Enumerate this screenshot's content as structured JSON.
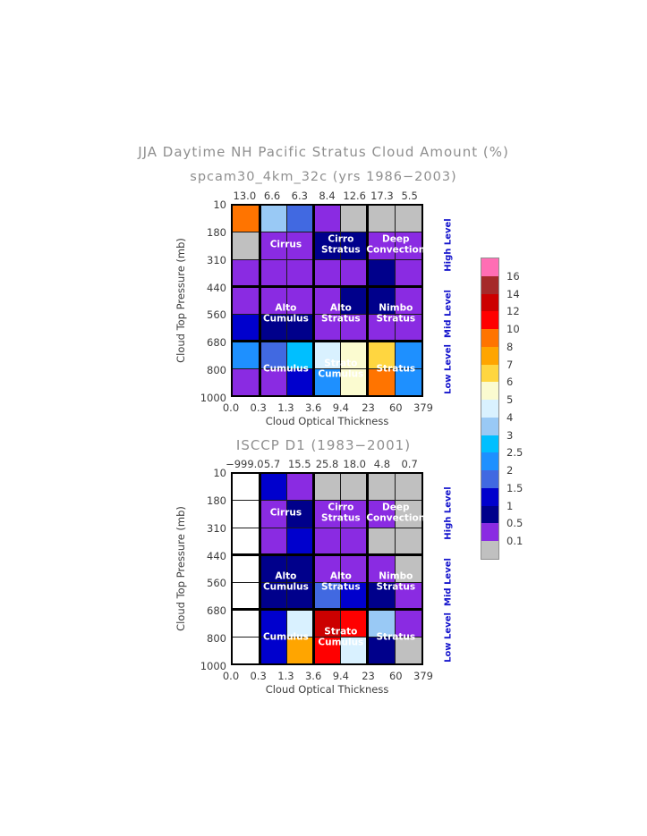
{
  "theme": {
    "background": "#FFFFFF",
    "title_color": "#8f8f8f",
    "tick_color": "#3d3d3d",
    "cell_label_color": "#FFFFFF",
    "level_label_color": "#1414CC",
    "grid_line_color": "#000000"
  },
  "chart_data": {
    "type": "heatmap",
    "title": "JJA Daytime NH Pacific Stratus Cloud Amount (%)",
    "xlabel": "Cloud Optical Thickness",
    "ylabel": "Cloud Top Pressure (mb)",
    "x_bin_edges": [
      0.0,
      0.3,
      1.3,
      3.6,
      9.4,
      23,
      60,
      379
    ],
    "y_bin_edges_mb": [
      10,
      180,
      310,
      440,
      560,
      680,
      800,
      1000
    ],
    "x_tick_labels": [
      "0.0",
      "0.3",
      "1.3",
      "3.6",
      "9.4",
      "23",
      "60",
      "379"
    ],
    "y_tick_labels": [
      "10",
      "180",
      "310",
      "440",
      "560",
      "680",
      "800",
      "1000"
    ],
    "level_labels": [
      "High Level",
      "Mid Level",
      "Low Level"
    ],
    "level_row_bands": [
      [
        0,
        3
      ],
      [
        3,
        5
      ],
      [
        5,
        7
      ]
    ],
    "cloud_type_labels": [
      {
        "lines": [
          "Cirrus"
        ],
        "col_boundary": 2,
        "y_mode": "row",
        "y_index": 1
      },
      {
        "lines": [
          "Cirro",
          "Stratus"
        ],
        "col_boundary": 4,
        "y_mode": "row",
        "y_index": 1
      },
      {
        "lines": [
          "Deep",
          "Convection"
        ],
        "col_boundary": 6,
        "y_mode": "row",
        "y_index": 1
      },
      {
        "lines": [
          "Alto",
          "Cumulus"
        ],
        "col_boundary": 2,
        "y_mode": "boundary",
        "y_index": 4
      },
      {
        "lines": [
          "Alto",
          "Stratus"
        ],
        "col_boundary": 4,
        "y_mode": "boundary",
        "y_index": 4
      },
      {
        "lines": [
          "Nimbo",
          "Stratus"
        ],
        "col_boundary": 6,
        "y_mode": "boundary",
        "y_index": 4
      },
      {
        "lines": [
          "Cumulus"
        ],
        "col_boundary": 2,
        "y_mode": "boundary",
        "y_index": 6
      },
      {
        "lines": [
          "Strato",
          "Cumulus"
        ],
        "col_boundary": 4,
        "y_mode": "boundary",
        "y_index": 6
      },
      {
        "lines": [
          "Stratus"
        ],
        "col_boundary": 6,
        "y_mode": "boundary",
        "y_index": 6
      }
    ],
    "panels": [
      {
        "subtitle": "spcam30_4km_32c (yrs 1986−2003)",
        "column_means": [
          13.0,
          6.6,
          6.3,
          8.4,
          12.6,
          17.3,
          5.5
        ],
        "column_mean_labels": [
          "13.0",
          "6.6",
          "6.3",
          "8.4",
          "12.6",
          "17.3",
          "5.5"
        ],
        "cells": [
          [
            "#FF7400",
            "#99C9F5",
            "#4169E1",
            "#8A2BE2",
            "#C0C0C0",
            "#C0C0C0",
            "#C0C0C0"
          ],
          [
            "#C0C0C0",
            "#8A2BE2",
            "#8A2BE2",
            "#00008B",
            "#00008B",
            "#8A2BE2",
            "#8A2BE2"
          ],
          [
            "#8A2BE2",
            "#8A2BE2",
            "#8A2BE2",
            "#8A2BE2",
            "#8A2BE2",
            "#00008B",
            "#8A2BE2"
          ],
          [
            "#8A2BE2",
            "#8A2BE2",
            "#8A2BE2",
            "#8A2BE2",
            "#00008B",
            "#00008B",
            "#8A2BE2"
          ],
          [
            "#0000CD",
            "#00008B",
            "#00008B",
            "#8A2BE2",
            "#8A2BE2",
            "#8A2BE2",
            "#8A2BE2"
          ],
          [
            "#1E90FF",
            "#4169E1",
            "#00BFFF",
            "#D9F1FF",
            "#FBFBD0",
            "#FFD640",
            "#1E90FF"
          ],
          [
            "#8A2BE2",
            "#8A2BE2",
            "#0000CD",
            "#1E90FF",
            "#FBFBD0",
            "#FF7400",
            "#1E90FF"
          ]
        ]
      },
      {
        "subtitle": "ISCCP D1 (1983−2001)",
        "column_means": [
          -999.0,
          5.7,
          15.5,
          25.8,
          18.0,
          4.8,
          0.7
        ],
        "column_mean_labels": [
          "−999.0",
          "5.7",
          "15.5",
          "25.8",
          "18.0",
          "4.8",
          "0.7"
        ],
        "cells": [
          [
            "#FFFFFF",
            "#0000CD",
            "#8A2BE2",
            "#C0C0C0",
            "#C0C0C0",
            "#C0C0C0",
            "#C0C0C0"
          ],
          [
            "#FFFFFF",
            "#8A2BE2",
            "#00008B",
            "#8A2BE2",
            "#8A2BE2",
            "#8A2BE2",
            "#C0C0C0"
          ],
          [
            "#FFFFFF",
            "#8A2BE2",
            "#0000CD",
            "#8A2BE2",
            "#8A2BE2",
            "#C0C0C0",
            "#C0C0C0"
          ],
          [
            "#FFFFFF",
            "#00008B",
            "#00008B",
            "#8A2BE2",
            "#8A2BE2",
            "#8A2BE2",
            "#C0C0C0"
          ],
          [
            "#FFFFFF",
            "#00008B",
            "#00008B",
            "#4169E1",
            "#0000CD",
            "#00008B",
            "#8A2BE2"
          ],
          [
            "#FFFFFF",
            "#0000CD",
            "#D9F1FF",
            "#CC0000",
            "#FF0000",
            "#99C9F5",
            "#8A2BE2"
          ],
          [
            "#FFFFFF",
            "#0000CD",
            "#FFA500",
            "#FF0000",
            "#D9F1FF",
            "#00008B",
            "#C0C0C0"
          ]
        ]
      }
    ],
    "colorbar": {
      "tick_labels": [
        "16",
        "14",
        "12",
        "10",
        "8",
        "7",
        "6",
        "5",
        "4",
        "3",
        "2.5",
        "2",
        "1.5",
        "1",
        "0.5",
        "0.1"
      ],
      "tick_values": [
        16,
        14,
        12,
        10,
        8,
        7,
        6,
        5,
        4,
        3,
        2.5,
        2,
        1.5,
        1,
        0.5,
        0.1
      ],
      "colors": [
        "#FF6EB4",
        "#A52A2A",
        "#CC0000",
        "#FF0000",
        "#FF7400",
        "#FFA500",
        "#FFD640",
        "#FBFBD0",
        "#D9F1FF",
        "#99C9F5",
        "#00BFFF",
        "#1E90FF",
        "#4169E1",
        "#0000CD",
        "#00008B",
        "#8A2BE2",
        "#C0C0C0"
      ]
    }
  }
}
